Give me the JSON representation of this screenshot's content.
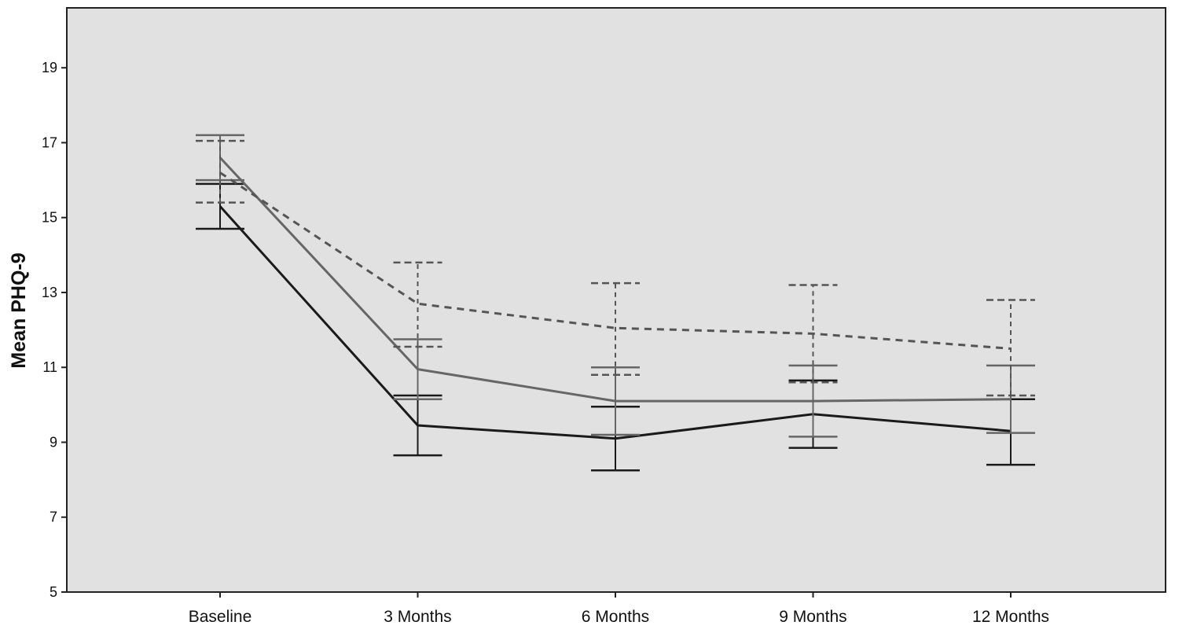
{
  "chart_data": {
    "type": "line",
    "title": "",
    "xlabel": "",
    "ylabel": "Mean PHQ-9",
    "categories": [
      "Baseline",
      "3 Months",
      "6 Months",
      "9 Months",
      "12 Months"
    ],
    "ylim": [
      5,
      20.6
    ],
    "yticks": [
      5,
      7,
      9,
      11,
      13,
      15,
      17,
      19
    ],
    "grid": false,
    "legend": "none",
    "plot_background": "#e1e1e1",
    "series": [
      {
        "style": "solid",
        "color": "#1a1a1a",
        "values": [
          15.3,
          9.45,
          9.1,
          9.75,
          9.3
        ],
        "ci_low": [
          14.7,
          8.65,
          8.25,
          8.85,
          8.4
        ],
        "ci_high": [
          15.9,
          10.25,
          9.95,
          10.65,
          10.15
        ]
      },
      {
        "style": "solid",
        "color": "#666666",
        "values": [
          16.6,
          10.95,
          10.1,
          10.1,
          10.15
        ],
        "ci_low": [
          16.0,
          10.15,
          9.2,
          9.15,
          9.25
        ],
        "ci_high": [
          17.2,
          11.75,
          11.0,
          11.05,
          11.05
        ]
      },
      {
        "style": "dashed",
        "color": "#555555",
        "values": [
          16.2,
          12.7,
          12.05,
          11.9,
          11.5
        ],
        "ci_low": [
          15.4,
          11.55,
          10.8,
          10.6,
          10.25
        ],
        "ci_high": [
          17.05,
          13.8,
          13.25,
          13.2,
          12.8
        ]
      }
    ]
  }
}
